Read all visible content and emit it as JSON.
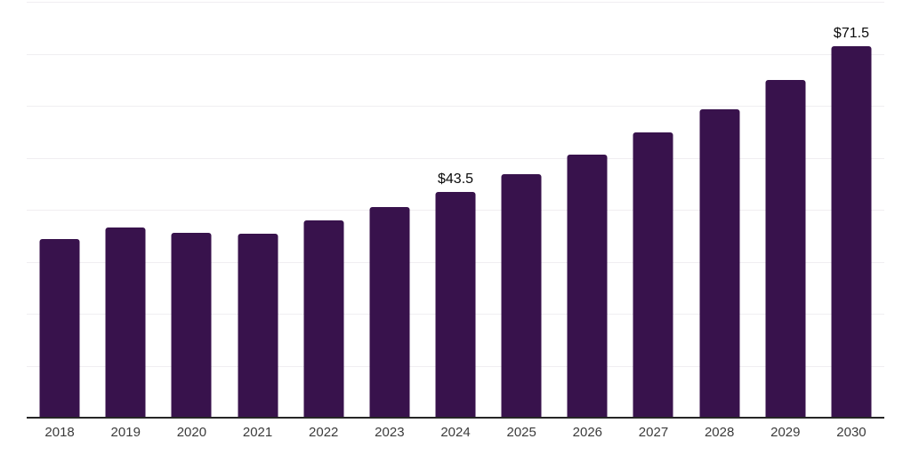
{
  "chart_data": {
    "type": "bar",
    "title": "",
    "xlabel": "",
    "ylabel": "",
    "categories": [
      "2018",
      "2019",
      "2020",
      "2021",
      "2022",
      "2023",
      "2024",
      "2025",
      "2026",
      "2027",
      "2028",
      "2029",
      "2030"
    ],
    "values": [
      34.3,
      36.5,
      35.6,
      35.4,
      37.9,
      40.5,
      43.5,
      46.8,
      50.6,
      54.8,
      59.4,
      65.0,
      71.5
    ],
    "data_labels": [
      "",
      "",
      "",
      "",
      "",
      "",
      "$43.5",
      "",
      "",
      "",
      "",
      "",
      "$71.5"
    ],
    "ylim": [
      0,
      80
    ],
    "gridline_step": 10,
    "grid": true,
    "legend": "none",
    "colors": {
      "bar": "#38124C",
      "gridline": "#f0eef1",
      "axis_line": "#262626",
      "tick_label": "#3b3b3b",
      "data_label": "#0a0a0a"
    }
  }
}
